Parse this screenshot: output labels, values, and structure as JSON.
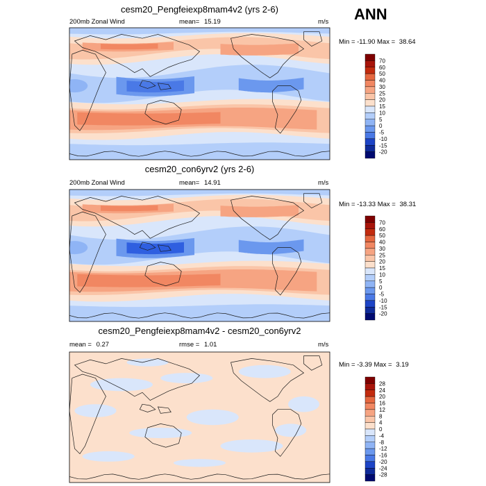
{
  "season": "ANN",
  "colors": {
    "pos": [
      "#fce0cc",
      "#fac5a8",
      "#f6a482",
      "#f18762",
      "#e5673f",
      "#d4471f",
      "#c22b0e",
      "#a8140a",
      "#7f0000"
    ],
    "neg": [
      "#d9e6fb",
      "#b3cefa",
      "#8fb4f5",
      "#6b98ee",
      "#4a79e6",
      "#2f5fe0",
      "#1d44c6",
      "#0f2b9a",
      "#000a70"
    ],
    "white": "#ffffff",
    "coast": "#1a1a1a"
  },
  "panels": [
    {
      "title": "cesm20_Pengfeiexp8mam4v2 (yrs 2-6)",
      "left_label": "200mb Zonal Wind",
      "mean_label": "mean=",
      "mean_value": "15.19",
      "units": "m/s",
      "min_label": "Min =",
      "min_value": "-11.90",
      "max_label": "Max =",
      "max_value": "38.64",
      "colorbar_labels": [
        "70",
        "60",
        "50",
        "40",
        "30",
        "25",
        "20",
        "15",
        "10",
        "5",
        "0",
        "-5",
        "-10",
        "-15",
        "-20"
      ]
    },
    {
      "title": "cesm20_con6yrv2 (yrs 2-6)",
      "left_label": "200mb Zonal Wind",
      "mean_label": "mean=",
      "mean_value": "14.91",
      "units": "m/s",
      "min_label": "Min =",
      "min_value": "-13.33",
      "max_label": "Max =",
      "max_value": "38.31",
      "colorbar_labels": [
        "70",
        "60",
        "50",
        "40",
        "30",
        "25",
        "20",
        "15",
        "10",
        "5",
        "0",
        "-5",
        "-10",
        "-15",
        "-20"
      ]
    },
    {
      "title": "cesm20_Pengfeiexp8mam4v2 - cesm20_con6yrv2",
      "left_label": "mean =",
      "left_value": "0.27",
      "rmse_label": "rmse =",
      "rmse_value": "1.01",
      "units": "m/s",
      "min_label": "Min =",
      "min_value": "-3.39",
      "max_label": "Max =",
      "max_value": "3.19",
      "colorbar_labels": [
        "28",
        "24",
        "20",
        "16",
        "12",
        "8",
        "4",
        "0",
        "-4",
        "-8",
        "-12",
        "-16",
        "-20",
        "-24",
        "-28"
      ]
    }
  ]
}
